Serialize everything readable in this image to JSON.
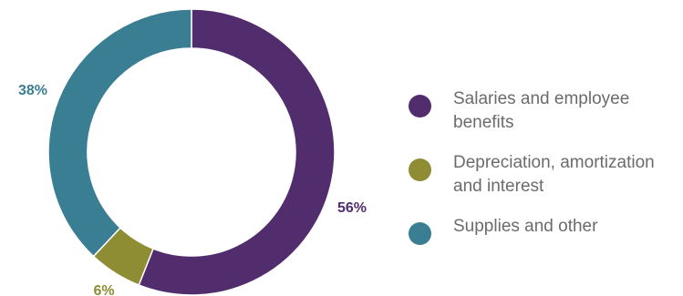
{
  "chart_data": {
    "type": "pie",
    "title": "",
    "categories": [
      "Salaries and employee benefits",
      "Depreciation, amortization and interest",
      "Supplies and other"
    ],
    "values": [
      56,
      6,
      38
    ],
    "labels": [
      "56%",
      "6%",
      "38%"
    ],
    "colors": [
      "#512d6d",
      "#8e8d34",
      "#3a7e94"
    ],
    "legend_position": "right"
  },
  "legend": [
    {
      "label": "Salaries and employee benefits",
      "color": "#512d6d"
    },
    {
      "label": "Depreciation, amortization and interest",
      "color": "#8e8d34"
    },
    {
      "label": "Supplies and other",
      "color": "#3a7e94"
    }
  ]
}
